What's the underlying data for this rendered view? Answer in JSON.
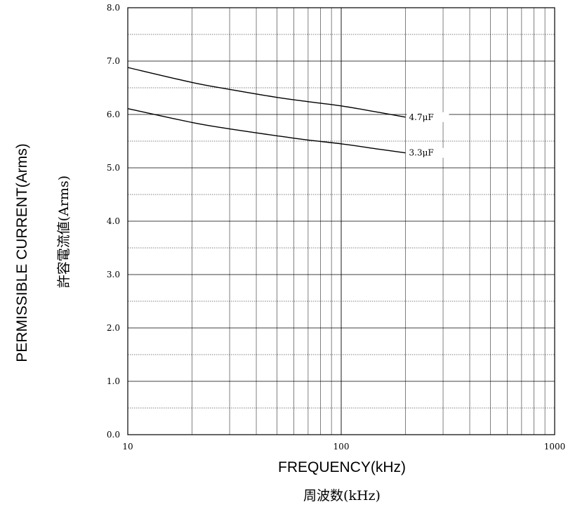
{
  "chart_data": {
    "type": "line",
    "x_scale": "log",
    "xlim": [
      10,
      1000
    ],
    "ylim": [
      0,
      8
    ],
    "grid": true,
    "xlabel": "FREQUENCY(kHz)",
    "xlabel_ja": "周波数(kHz)",
    "ylabel": "PERMISSIBLE CURRENT(Arms)",
    "ylabel_ja": "許容電流値(Arms)",
    "x_ticks": [
      {
        "value": 10,
        "label": "10"
      },
      {
        "value": 100,
        "label": "100"
      },
      {
        "value": 1000,
        "label": "1000"
      }
    ],
    "y_ticks": [
      {
        "value": 0,
        "label": "0.0"
      },
      {
        "value": 1,
        "label": "1.0"
      },
      {
        "value": 2,
        "label": "2.0"
      },
      {
        "value": 3,
        "label": "3.0"
      },
      {
        "value": 4,
        "label": "4.0"
      },
      {
        "value": 5,
        "label": "5.0"
      },
      {
        "value": 6,
        "label": "6.0"
      },
      {
        "value": 7,
        "label": "7.0"
      },
      {
        "value": 8,
        "label": "8.0"
      }
    ],
    "series": [
      {
        "name": "4.7μF",
        "label": "4.7μF",
        "x": [
          10,
          20,
          30,
          50,
          70,
          100,
          150,
          200
        ],
        "y": [
          6.88,
          6.6,
          6.47,
          6.32,
          6.24,
          6.16,
          6.04,
          5.95
        ]
      },
      {
        "name": "3.3μF",
        "label": "3.3μF",
        "x": [
          10,
          20,
          30,
          50,
          70,
          100,
          150,
          200
        ],
        "y": [
          6.11,
          5.85,
          5.73,
          5.6,
          5.52,
          5.45,
          5.35,
          5.28
        ]
      }
    ],
    "line_color": "#000000",
    "grid_color": "#000000"
  }
}
